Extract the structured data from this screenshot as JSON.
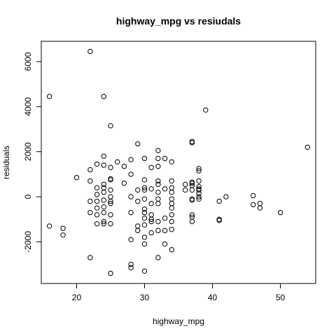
{
  "chart_data": {
    "type": "scatter",
    "title": "highway_mpg  vs resiudals",
    "xlabel": "highway_mpg",
    "ylabel": "residuals",
    "xlim": [
      14.8,
      55.2
    ],
    "ylim": [
      -3850,
      6900
    ],
    "xticks": [
      20,
      30,
      40,
      50
    ],
    "yticks": [
      -2000,
      0,
      2000,
      4000,
      6000
    ],
    "grid": false,
    "legend": "none",
    "points": [
      [
        16,
        4450
      ],
      [
        16,
        -1300
      ],
      [
        18,
        -1400
      ],
      [
        18,
        -1700
      ],
      [
        20,
        850
      ],
      [
        22,
        6450
      ],
      [
        22,
        1200
      ],
      [
        22,
        700
      ],
      [
        22,
        -200
      ],
      [
        22,
        -700
      ],
      [
        22,
        -2700
      ],
      [
        23,
        1450
      ],
      [
        23,
        400
      ],
      [
        23,
        100
      ],
      [
        23,
        -200
      ],
      [
        23,
        -500
      ],
      [
        23,
        -800
      ],
      [
        23,
        -1200
      ],
      [
        24,
        4450
      ],
      [
        24,
        1800
      ],
      [
        24,
        1400
      ],
      [
        24,
        550
      ],
      [
        24,
        400
      ],
      [
        24,
        200
      ],
      [
        24,
        -150
      ],
      [
        24,
        -450
      ],
      [
        24,
        -700
      ],
      [
        24,
        -1100
      ],
      [
        24,
        -1200
      ],
      [
        25,
        3150
      ],
      [
        25,
        1300
      ],
      [
        25,
        800
      ],
      [
        25,
        750
      ],
      [
        25,
        300
      ],
      [
        25,
        0
      ],
      [
        25,
        -200
      ],
      [
        25,
        -300
      ],
      [
        25,
        -800
      ],
      [
        25,
        -1200
      ],
      [
        25,
        -3400
      ],
      [
        26,
        1550
      ],
      [
        27,
        1350
      ],
      [
        27,
        600
      ],
      [
        28,
        1650
      ],
      [
        28,
        1000
      ],
      [
        28,
        0
      ],
      [
        28,
        -700
      ],
      [
        28,
        -1900
      ],
      [
        28,
        -3000
      ],
      [
        28,
        -3150
      ],
      [
        29,
        2350
      ],
      [
        29,
        300
      ],
      [
        29,
        -200
      ],
      [
        29,
        -1300
      ],
      [
        29,
        -1500
      ],
      [
        30,
        1700
      ],
      [
        30,
        750
      ],
      [
        30,
        400
      ],
      [
        30,
        300
      ],
      [
        30,
        -100
      ],
      [
        30,
        -550
      ],
      [
        30,
        -700
      ],
      [
        30,
        -950
      ],
      [
        30,
        -1250
      ],
      [
        30,
        -1800
      ],
      [
        30,
        -2100
      ],
      [
        30,
        -3300
      ],
      [
        31,
        1300
      ],
      [
        31,
        350
      ],
      [
        31,
        -300
      ],
      [
        31,
        -800
      ],
      [
        31,
        -1000
      ],
      [
        31,
        -1100
      ],
      [
        31,
        -1600
      ],
      [
        32,
        2050
      ],
      [
        32,
        1700
      ],
      [
        32,
        1350
      ],
      [
        32,
        700
      ],
      [
        32,
        550
      ],
      [
        32,
        200
      ],
      [
        32,
        -100
      ],
      [
        32,
        -300
      ],
      [
        32,
        -1100
      ],
      [
        32,
        -1500
      ],
      [
        32,
        -2700
      ],
      [
        33,
        1700
      ],
      [
        33,
        350
      ],
      [
        33,
        -950
      ],
      [
        33,
        -1500
      ],
      [
        33,
        -2100
      ],
      [
        34,
        1550
      ],
      [
        34,
        700
      ],
      [
        34,
        400
      ],
      [
        34,
        200
      ],
      [
        34,
        -100
      ],
      [
        34,
        -300
      ],
      [
        34,
        -500
      ],
      [
        34,
        -800
      ],
      [
        34,
        -1100
      ],
      [
        34,
        -1450
      ],
      [
        34,
        -2350
      ],
      [
        36,
        550
      ],
      [
        36,
        300
      ],
      [
        37,
        2450
      ],
      [
        37,
        2400
      ],
      [
        37,
        650
      ],
      [
        37,
        600
      ],
      [
        37,
        500
      ],
      [
        37,
        300
      ],
      [
        37,
        -100
      ],
      [
        37,
        -150
      ],
      [
        37,
        -800
      ],
      [
        37,
        -900
      ],
      [
        37,
        -1100
      ],
      [
        38,
        1250
      ],
      [
        38,
        1150
      ],
      [
        38,
        700
      ],
      [
        38,
        450
      ],
      [
        38,
        350
      ],
      [
        38,
        300
      ],
      [
        38,
        150
      ],
      [
        38,
        0
      ],
      [
        38,
        -100
      ],
      [
        39,
        3850
      ],
      [
        41,
        -200
      ],
      [
        41,
        -1000
      ],
      [
        41,
        -1050
      ],
      [
        42,
        0
      ],
      [
        46,
        50
      ],
      [
        46,
        -350
      ],
      [
        47,
        -300
      ],
      [
        47,
        -500
      ],
      [
        50,
        -700
      ],
      [
        54,
        2200
      ]
    ]
  }
}
